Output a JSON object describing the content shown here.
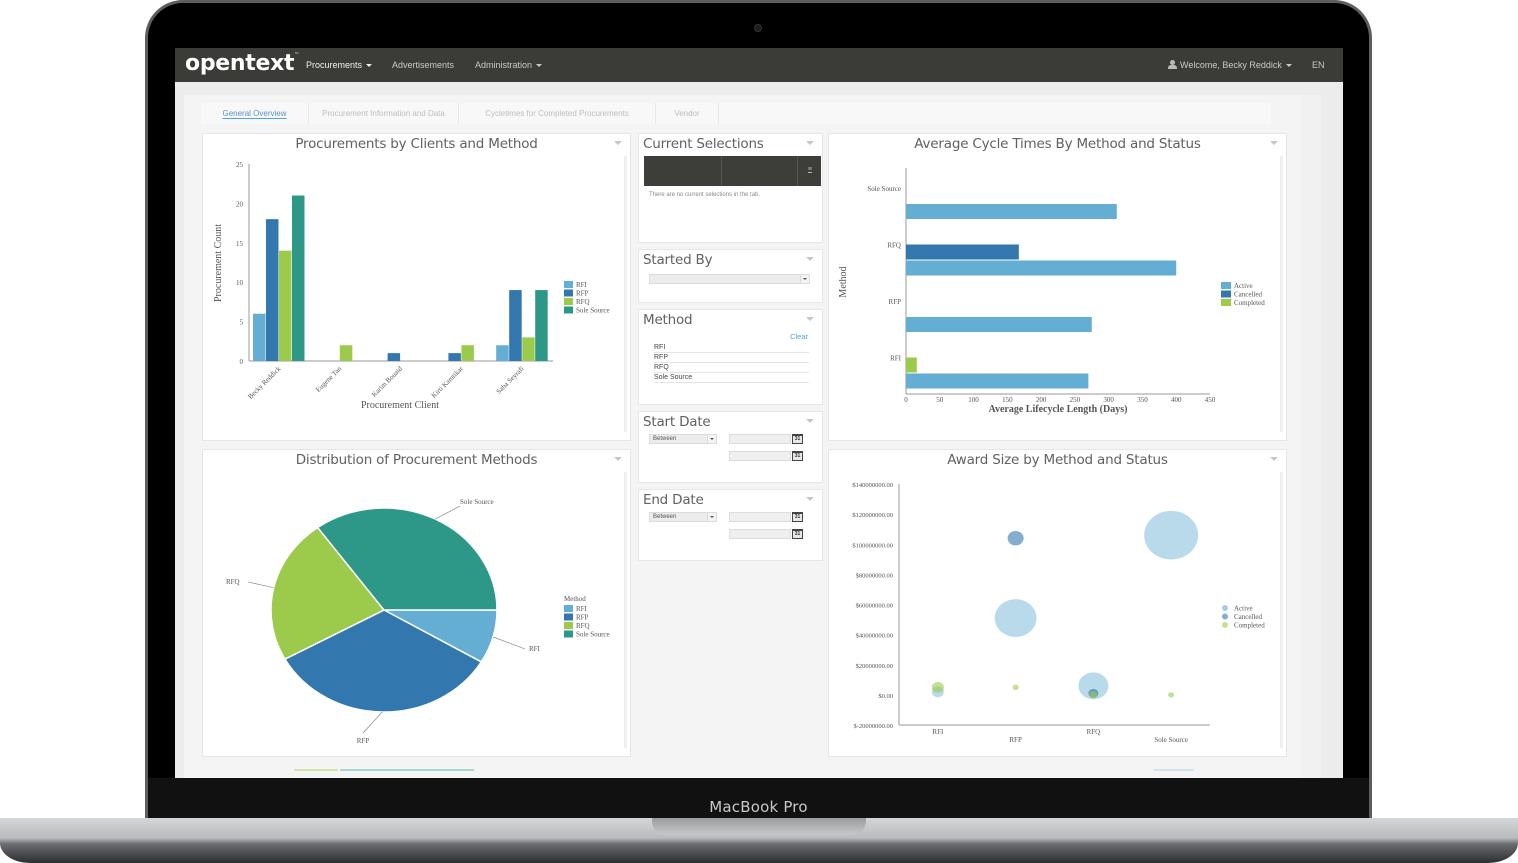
{
  "device": {
    "label": "MacBook Pro"
  },
  "navbar": {
    "logo": "opentext",
    "logo_tm": "™",
    "items": [
      {
        "label": "Procurements",
        "has_caret": true,
        "active": true
      },
      {
        "label": "Advertisements",
        "has_caret": false,
        "active": false
      },
      {
        "label": "Administration",
        "has_caret": true,
        "active": false
      }
    ],
    "user": {
      "icon": "user-icon",
      "label": "Welcome, Becky Reddick"
    },
    "language": "EN"
  },
  "tabs": [
    {
      "label": "General Overview",
      "active": true
    },
    {
      "label": "Procurement Information and Data",
      "active": false
    },
    {
      "label": "Cycletimes for Completed Procurements",
      "active": false
    },
    {
      "label": "Vendor",
      "active": false
    }
  ],
  "colors": {
    "RFI": "#63aed2",
    "RFP": "#3277ad",
    "RFQ": "#9ccb4b",
    "Sole Source": "#2d9788",
    "Active": "#63aed2",
    "Cancelled": "#3277ad",
    "Completed": "#9ccb4b",
    "navbar": "#3b3b37",
    "link": "#4aa3e8"
  },
  "panels": {
    "clients_chart": {
      "title": "Procurements by Clients and Method"
    },
    "current_selections": {
      "title": "Current Selections",
      "empty_text": "There are no current selections in the tab."
    },
    "started_by": {
      "title": "Started By",
      "value": ""
    },
    "method": {
      "title": "Method",
      "clear_label": "Clear",
      "items": [
        "RFI",
        "RFP",
        "RFQ",
        "Sole Source"
      ]
    },
    "start_date": {
      "title": "Start Date",
      "operator": "Between",
      "from": "",
      "to": ""
    },
    "end_date": {
      "title": "End Date",
      "operator": "Between",
      "from": "",
      "to": ""
    },
    "cycle_chart": {
      "title": "Average Cycle Times By Method and Status"
    },
    "distribution_chart": {
      "title": "Distribution of Procurement Methods"
    },
    "award_chart": {
      "title": "Award Size by Method and Status"
    }
  },
  "calendar_icon_text": "31",
  "chart_data": [
    {
      "id": "clients",
      "type": "bar",
      "title": "Procurements by Clients and Method",
      "xlabel": "Procurement Client",
      "ylabel": "Procurement Count",
      "ylim": [
        0,
        25
      ],
      "yticks": [
        0,
        5,
        10,
        15,
        20,
        25
      ],
      "categories": [
        "Becky Reddick",
        "Eugene Tan",
        "Karim Bouaid",
        "Kirti Kamtikar",
        "Saba Seyrafi"
      ],
      "series": [
        {
          "name": "RFI",
          "values": [
            6,
            0,
            0,
            0,
            2
          ]
        },
        {
          "name": "RFP",
          "values": [
            18,
            0,
            1,
            1,
            9
          ]
        },
        {
          "name": "RFQ",
          "values": [
            14,
            2,
            0,
            2,
            3
          ]
        },
        {
          "name": "Sole Source",
          "values": [
            21,
            0,
            0,
            0,
            9
          ]
        }
      ],
      "legend": [
        "RFI",
        "RFP",
        "RFQ",
        "Sole Source"
      ],
      "legend_position": "right",
      "grid": false
    },
    {
      "id": "cycle",
      "type": "bar",
      "orientation": "horizontal",
      "title": "Average Cycle Times By Method and Status",
      "xlabel": "Average Lifecycle Length (Days)",
      "ylabel": "Method",
      "xlim": [
        0,
        450
      ],
      "xticks": [
        0,
        50,
        100,
        150,
        200,
        250,
        300,
        350,
        400,
        450
      ],
      "categories": [
        "Sole Source",
        "RFQ",
        "RFP",
        "RFI"
      ],
      "series": [
        {
          "name": "Active",
          "values": [
            312,
            400,
            275,
            270
          ]
        },
        {
          "name": "Cancelled",
          "values": [
            0,
            167,
            0,
            0
          ]
        },
        {
          "name": "Completed",
          "values": [
            0,
            0,
            0,
            16
          ]
        }
      ],
      "legend": [
        "Active",
        "Cancelled",
        "Completed"
      ],
      "legend_position": "right",
      "grid": false
    },
    {
      "id": "distribution",
      "type": "pie",
      "title": "Distribution of Procurement Methods",
      "legend_title": "Method",
      "labels": [
        "RFI",
        "RFP",
        "RFQ",
        "Sole Source"
      ],
      "values": [
        8.5,
        33.5,
        23,
        35
      ],
      "legend_position": "right"
    },
    {
      "id": "award",
      "type": "scatter",
      "subtype": "bubble",
      "title": "Award Size by Method and Status",
      "categories": [
        "RFI",
        "RFP",
        "RFQ",
        "Sole Source"
      ],
      "ylim": [
        -20000000,
        140000000
      ],
      "yticks": [
        "$-20000000.00",
        "$0.00",
        "$20000000.00",
        "$40000000.00",
        "$60000000.00",
        "$80000000.00",
        "$100000000.00",
        "$120000000.00",
        "$140000000.00"
      ],
      "series": [
        {
          "name": "Active",
          "points": [
            {
              "x": "RFI",
              "y": 2000000,
              "r": 6
            },
            {
              "x": "RFP",
              "y": 51000000,
              "r": 21
            },
            {
              "x": "RFQ",
              "y": 6000000,
              "r": 15
            },
            {
              "x": "Sole Source",
              "y": 106000000,
              "r": 27
            }
          ]
        },
        {
          "name": "Cancelled",
          "points": [
            {
              "x": "RFP",
              "y": 104000000,
              "r": 8
            },
            {
              "x": "RFQ",
              "y": 1000000,
              "r": 5
            }
          ]
        },
        {
          "name": "Completed",
          "points": [
            {
              "x": "RFI",
              "y": 5000000,
              "r": 6
            },
            {
              "x": "RFP",
              "y": 5000000,
              "r": 3
            },
            {
              "x": "RFQ",
              "y": 0,
              "r": 4
            },
            {
              "x": "Sole Source",
              "y": 0,
              "r": 3
            }
          ]
        }
      ],
      "legend": [
        "Active",
        "Cancelled",
        "Completed"
      ],
      "legend_position": "right"
    }
  ]
}
